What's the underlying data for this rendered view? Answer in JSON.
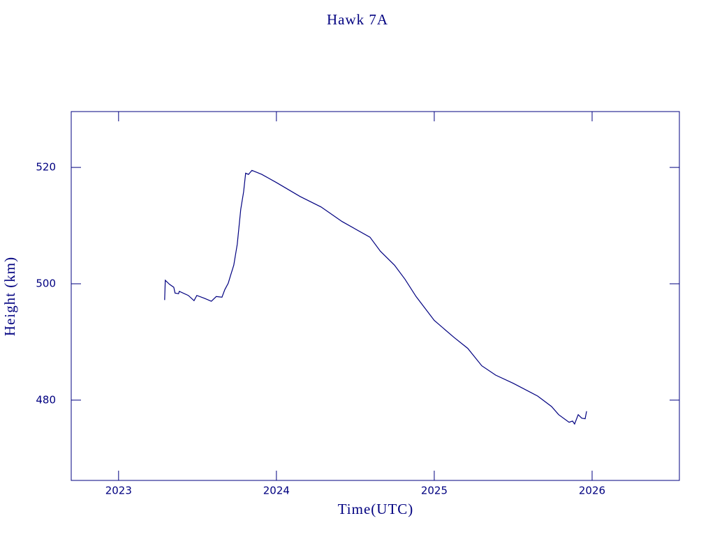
{
  "chart_data": {
    "type": "line",
    "title": "Hawk 7A",
    "x_label": "Time(UTC)",
    "y_label": "Height (km)",
    "color": "#000080",
    "xlim": [
      2022.7,
      2026.553
    ],
    "ylim": [
      466.2,
      529.6
    ],
    "xticks": [
      2023,
      2024,
      2025,
      2026
    ],
    "yticks": [
      480,
      500,
      520
    ],
    "x": [
      2023.292,
      2023.296,
      2023.323,
      2023.35,
      2023.358,
      2023.38,
      2023.385,
      2023.442,
      2023.478,
      2023.496,
      2023.544,
      2023.588,
      2023.619,
      2023.655,
      2023.673,
      2023.695,
      2023.708,
      2023.73,
      2023.752,
      2023.774,
      2023.792,
      2023.805,
      2023.823,
      2023.845,
      2023.907,
      2024.0,
      2024.15,
      2024.283,
      2024.416,
      2024.593,
      2024.659,
      2024.748,
      2024.814,
      2024.885,
      2025.0,
      2025.124,
      2025.212,
      2025.301,
      2025.389,
      2025.5,
      2025.655,
      2025.743,
      2025.788,
      2025.854,
      2025.876,
      2025.889,
      2025.912,
      2025.934,
      2025.956,
      2025.965
    ],
    "values": [
      497.2,
      500.6,
      499.9,
      499.4,
      498.4,
      498.3,
      498.7,
      498.0,
      497.1,
      498.0,
      497.5,
      497.0,
      497.8,
      497.7,
      499.0,
      500.1,
      501.3,
      503.2,
      506.8,
      512.8,
      515.8,
      519.0,
      518.8,
      519.5,
      518.8,
      517.4,
      515.0,
      513.2,
      510.7,
      508.0,
      505.6,
      503.2,
      500.8,
      497.8,
      493.7,
      490.8,
      488.9,
      485.9,
      484.3,
      482.9,
      480.7,
      478.9,
      477.5,
      476.2,
      476.4,
      475.9,
      477.5,
      476.9,
      476.8,
      478.1
    ]
  }
}
